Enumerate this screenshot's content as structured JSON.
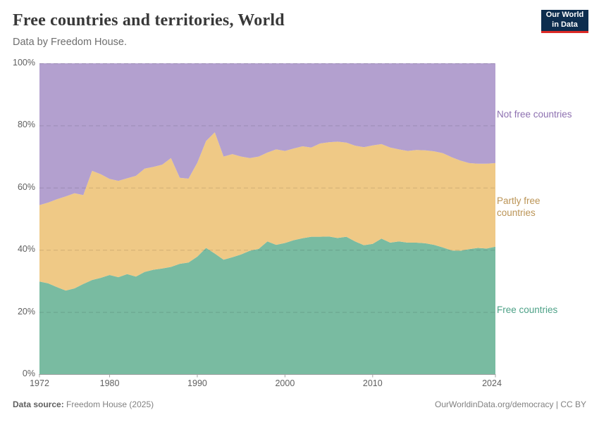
{
  "header": {
    "title": "Free countries and territories, World",
    "subtitle": "Data by Freedom House.",
    "logo": {
      "line1": "Our World",
      "line2": "in Data"
    }
  },
  "footer": {
    "source_label": "Data source:",
    "source_value": "Freedom House (2025)",
    "right_text": "OurWorldinData.org/democracy | CC BY"
  },
  "chart_data": {
    "type": "area",
    "stacked": true,
    "title": "Free countries and territories, World",
    "xlabel": "",
    "ylabel": "",
    "ylim": [
      0,
      100
    ],
    "grid": true,
    "legend_position": "right",
    "x": [
      1972,
      1973,
      1974,
      1975,
      1976,
      1977,
      1978,
      1979,
      1980,
      1981,
      1982,
      1983,
      1984,
      1985,
      1986,
      1987,
      1988,
      1989,
      1990,
      1991,
      1992,
      1993,
      1994,
      1995,
      1996,
      1997,
      1998,
      1999,
      2000,
      2001,
      2002,
      2003,
      2004,
      2005,
      2006,
      2007,
      2008,
      2009,
      2010,
      2011,
      2012,
      2013,
      2014,
      2015,
      2016,
      2017,
      2018,
      2019,
      2020,
      2021,
      2022,
      2023,
      2024
    ],
    "x_ticks": [
      1972,
      1980,
      1990,
      2000,
      2010,
      2024
    ],
    "y_ticks": [
      "0%",
      "20%",
      "40%",
      "60%",
      "80%",
      "100%"
    ],
    "y_tick_values": [
      0,
      20,
      40,
      60,
      80,
      100
    ],
    "series": [
      {
        "name": "Free countries",
        "color": "#79bba1",
        "label_color": "#4da187",
        "values": [
          29.8,
          29.2,
          28.0,
          26.9,
          27.6,
          29.0,
          30.3,
          31.0,
          31.9,
          31.2,
          32.2,
          31.4,
          32.9,
          33.6,
          34.0,
          34.5,
          35.5,
          35.9,
          37.8,
          40.6,
          38.8,
          36.8,
          37.6,
          38.5,
          39.7,
          40.3,
          42.7,
          41.6,
          42.2,
          43.1,
          43.7,
          44.2,
          44.2,
          44.3,
          43.8,
          44.2,
          42.7,
          41.5,
          41.9,
          43.6,
          42.3,
          42.7,
          42.3,
          42.3,
          42.1,
          41.6,
          40.8,
          39.8,
          39.7,
          40.2,
          40.6,
          40.4,
          41.0
        ]
      },
      {
        "name": "Partly free countries",
        "color": "#efc986",
        "label_color": "#bb9456",
        "values": [
          24.6,
          26.0,
          28.3,
          30.3,
          30.6,
          28.6,
          35.1,
          33.3,
          30.9,
          31.0,
          30.8,
          32.4,
          33.2,
          33.1,
          33.4,
          35.0,
          27.7,
          27.0,
          30.2,
          34.4,
          39.0,
          33.2,
          33.2,
          31.5,
          29.8,
          29.7,
          28.6,
          30.7,
          29.6,
          29.5,
          29.6,
          28.7,
          30.0,
          30.3,
          31.0,
          30.3,
          30.8,
          31.5,
          31.7,
          30.4,
          30.6,
          29.6,
          29.5,
          29.8,
          29.9,
          30.1,
          30.3,
          30.0,
          29.0,
          27.7,
          27.1,
          27.3,
          26.9
        ]
      },
      {
        "name": "Not free countries",
        "color": "#b3a0cf",
        "label_color": "#8d70b0",
        "values": [
          45.6,
          44.8,
          43.7,
          42.8,
          41.8,
          42.4,
          34.6,
          35.7,
          37.2,
          37.8,
          37.0,
          36.2,
          33.9,
          33.3,
          32.6,
          30.5,
          36.8,
          37.1,
          32.0,
          25.0,
          22.2,
          30.0,
          29.2,
          30.0,
          30.5,
          30.0,
          28.7,
          27.7,
          28.2,
          27.4,
          26.7,
          27.1,
          25.8,
          25.4,
          25.2,
          25.5,
          26.5,
          27.0,
          26.4,
          26.0,
          27.1,
          27.7,
          28.2,
          27.9,
          28.0,
          28.3,
          28.9,
          30.2,
          31.3,
          32.1,
          32.3,
          32.3,
          32.1
        ]
      }
    ],
    "series_label_lines": [
      [
        "Free countries"
      ],
      [
        "Partly free",
        "countries"
      ],
      [
        "Not free countries"
      ]
    ]
  }
}
